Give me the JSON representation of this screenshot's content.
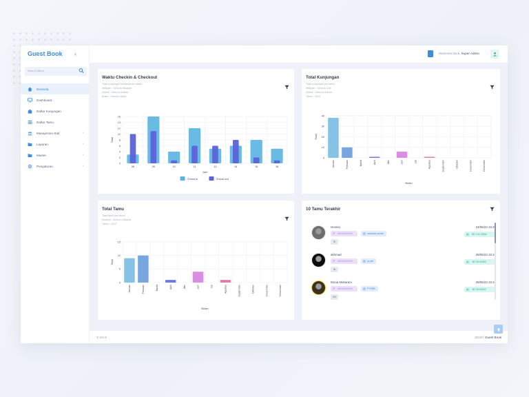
{
  "app": {
    "title": "Guest Book"
  },
  "sidebar": {
    "search_placeholder": "Search Menu",
    "items": [
      {
        "label": "Beranda",
        "icon": "home-icon",
        "active": true,
        "has_children": false
      },
      {
        "label": "Dashboard",
        "icon": "monitor-icon",
        "active": false,
        "has_children": false
      },
      {
        "label": "Daftar Kunjungan",
        "icon": "building-icon",
        "active": false,
        "has_children": false
      },
      {
        "label": "Daftar Tamu",
        "icon": "list-icon",
        "active": false,
        "has_children": false
      },
      {
        "label": "Manajemen Staf",
        "icon": "users-icon",
        "active": false,
        "has_children": true
      },
      {
        "label": "Laporan",
        "icon": "folder-icon",
        "active": false,
        "has_children": true
      },
      {
        "label": "Master",
        "icon": "folder-icon",
        "active": false,
        "has_children": true
      },
      {
        "label": "Pengaturan",
        "icon": "gear-icon",
        "active": false,
        "has_children": true
      }
    ]
  },
  "header": {
    "welcome": "Welcome back,",
    "user": "Super Admin"
  },
  "cards": {
    "checkin": {
      "title": "Waktu Checkin & Checkout",
      "subtitle": [
        "Total kunjungan berdasarkan waktu",
        "Wilayah : Seluruh Wilayah",
        "Kantor : Seluruh Kantor",
        "Bulan : Seluruh Masa"
      ]
    },
    "kunjungan": {
      "title": "Total Kunjungan",
      "subtitle": [
        "Total kunjungan per tahun",
        "Wilayah : Seluruh Unit",
        "Kantor : Seluruh Kantor",
        "Tahun : 2022"
      ]
    },
    "tamu": {
      "title": "Total Tamu",
      "subtitle": [
        "Total tamu per tahun",
        "Instansi : Seluruh Instansi",
        "Tahun : 2022"
      ]
    },
    "recent": {
      "title": "10 Tamu Terakhir"
    }
  },
  "chart_data": [
    {
      "type": "bar",
      "title": "",
      "xlabel": "Jam",
      "ylabel": "Total",
      "categories": [
        "08",
        "09",
        "10",
        "11",
        "13",
        "14",
        "15",
        "16"
      ],
      "series": [
        {
          "name": "Check-in",
          "values": [
            3,
            16,
            4,
            12,
            5,
            6,
            8,
            5
          ]
        },
        {
          "name": "Check-out",
          "values": [
            10,
            11,
            1,
            6,
            6,
            8,
            2,
            1
          ]
        }
      ],
      "ylim": [
        0,
        16
      ],
      "yticks": [
        0,
        2,
        4,
        6,
        8,
        10,
        12,
        14,
        16
      ],
      "legend": "bottom",
      "colors": [
        "#5ab4e0",
        "#5b63d8"
      ]
    },
    {
      "type": "bar",
      "title": "",
      "xlabel": "Bulan",
      "ylabel": "Total",
      "categories": [
        "Januari",
        "Februari",
        "Maret",
        "April",
        "Mei",
        "Juni",
        "Juli",
        "Agustus",
        "September",
        "Oktober",
        "November",
        "Desember"
      ],
      "values": [
        38,
        10,
        0,
        1,
        0,
        6,
        0,
        1,
        0,
        0,
        0,
        0
      ],
      "colors": [
        "#86c2e6",
        "#7aa6e0",
        "#7fb0e4",
        "#6f79d8",
        "#b58fe6",
        "#d98ee4",
        "#d98ee4",
        "#e07fa6",
        "#e07fa6",
        "#e07fa6",
        "#e07fa6",
        "#e07fa6"
      ],
      "ylim": [
        0,
        40
      ],
      "yticks": [
        0,
        10,
        20,
        30,
        40
      ]
    },
    {
      "type": "bar",
      "title": "",
      "xlabel": "Bulan",
      "ylabel": "Total",
      "categories": [
        "Januari",
        "Februari",
        "Maret",
        "April",
        "Mei",
        "Juni",
        "Juli",
        "Agustus",
        "September",
        "Oktober",
        "November",
        "Desember"
      ],
      "values": [
        9,
        10,
        0,
        1,
        0,
        4,
        0,
        1,
        0,
        0,
        0,
        0
      ],
      "colors": [
        "#86c2e6",
        "#7aa6e0",
        "#7fb0e4",
        "#6f79d8",
        "#b58fe6",
        "#d98ee4",
        "#d98ee4",
        "#e07fa6",
        "#e07fa6",
        "#e07fa6",
        "#e07fa6",
        "#e07fa6"
      ],
      "ylim": [
        0,
        15
      ],
      "yticks": [
        0,
        5,
        10,
        15
      ]
    }
  ],
  "guests": [
    {
      "name": "Husnai",
      "phone": "0821234XXXX",
      "institution": "sekawan media",
      "tag": "SI",
      "date": "24/06/22 15:25",
      "code": "SE-Y-A-10004",
      "avatar": "#6e6e6e"
    },
    {
      "name": "akhmad",
      "phone": "0821234XXXX",
      "institution": "pt.pbh",
      "tag": "IN",
      "date": "28/06/22 15:19",
      "code": "JKT-W-10003",
      "avatar": "#0c0c0c"
    },
    {
      "name": "Dacia Maharani",
      "phone": "0821234XXXX",
      "institution": "PT.PBB",
      "tag": "EN",
      "date": "28/06/22 15:16",
      "code": "JKT-W-10002",
      "avatar": "#3a3020"
    }
  ],
  "footer": {
    "version": "V 3.0.3",
    "copyright": "2022©",
    "app": "Guest Book"
  }
}
